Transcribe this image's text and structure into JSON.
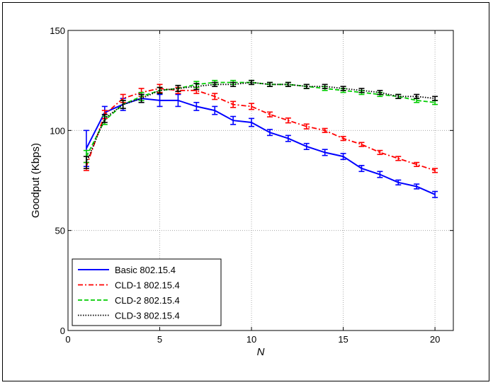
{
  "chart_data": {
    "type": "line",
    "title": "",
    "xlabel": "N",
    "ylabel": "Goodput (Kbps)",
    "xlim": [
      0,
      21
    ],
    "ylim": [
      0,
      150
    ],
    "xticks": [
      0,
      5,
      10,
      15,
      20
    ],
    "yticks": [
      0,
      50,
      100,
      150
    ],
    "grid": true,
    "legend_position": "bottom-left",
    "x": [
      1,
      2,
      3,
      4,
      5,
      6,
      7,
      8,
      9,
      10,
      11,
      12,
      13,
      14,
      15,
      16,
      17,
      18,
      19,
      20
    ],
    "series": [
      {
        "name": "Basic 802.15.4",
        "color": "#0000ff",
        "style": "solid",
        "values": [
          91,
          109,
          113,
          116,
          115,
          115,
          112,
          110,
          105,
          104,
          99,
          96,
          92,
          89,
          87,
          81,
          78,
          74,
          72,
          68
        ],
        "errors": [
          9,
          3,
          3,
          2,
          3,
          3,
          2,
          2,
          2,
          2,
          1.5,
          1.5,
          1.5,
          1.5,
          1.5,
          1.5,
          1.5,
          1.2,
          1.2,
          1.5
        ]
      },
      {
        "name": "CLD-1 802.15.4",
        "color": "#ff0000",
        "style": "dashdot",
        "values": [
          82,
          108,
          116,
          119,
          121,
          120,
          120,
          117,
          113,
          112,
          108,
          105,
          102,
          100,
          96,
          93,
          89,
          86,
          83,
          80
        ],
        "errors": [
          2,
          2,
          2,
          2,
          2,
          1.5,
          1.5,
          1.5,
          1.5,
          1.5,
          1.2,
          1.2,
          1.2,
          1,
          1,
          1,
          1,
          1,
          1,
          1
        ]
      },
      {
        "name": "CLD-2 802.15.4",
        "color": "#00cc00",
        "style": "dashed",
        "values": [
          87,
          105,
          113,
          117,
          120,
          121,
          123,
          124,
          124,
          124,
          123,
          123,
          122,
          121,
          120,
          119,
          118,
          117,
          115,
          114
        ],
        "errors": [
          3,
          2,
          2,
          2,
          1.5,
          1.5,
          1.5,
          1,
          1,
          1,
          1,
          1,
          1,
          1,
          1,
          1,
          1,
          1,
          1,
          1
        ]
      },
      {
        "name": "CLD-3 802.15.4",
        "color": "#000000",
        "style": "dotted",
        "values": [
          84,
          106,
          113,
          116,
          120,
          121,
          122,
          123,
          123,
          124,
          123,
          123,
          122,
          122,
          121,
          120,
          119,
          117,
          117,
          116
        ],
        "errors": [
          3,
          2,
          2,
          2,
          1.5,
          1.5,
          1.5,
          1,
          1,
          1,
          1,
          1,
          1,
          1,
          1,
          1,
          1,
          1,
          1,
          1
        ]
      }
    ]
  }
}
